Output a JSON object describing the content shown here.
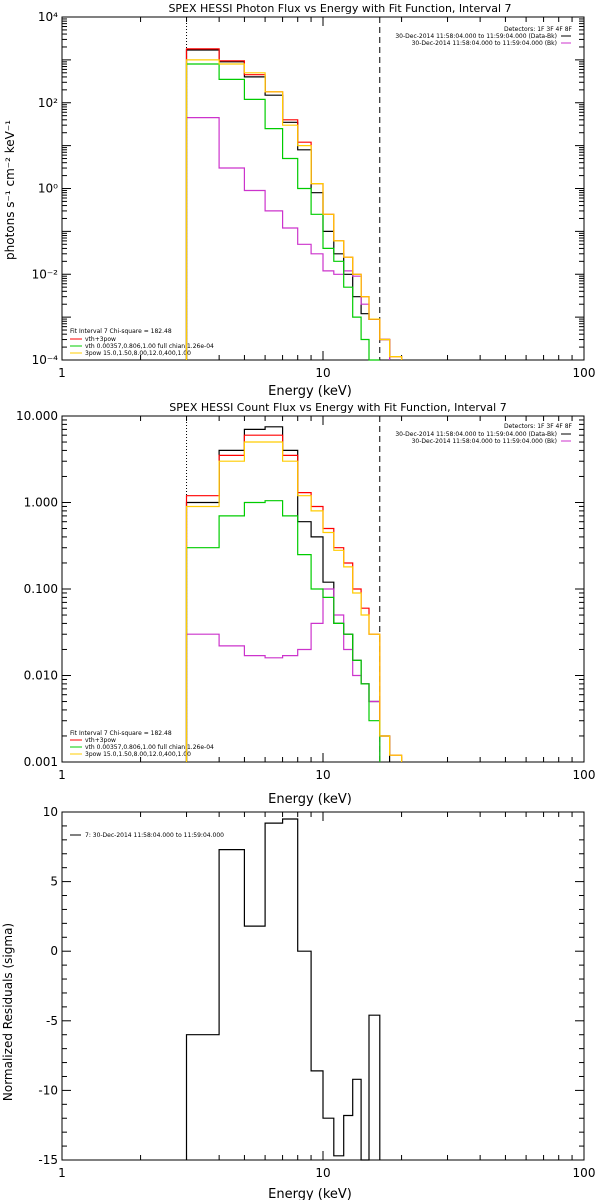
{
  "chart_data": [
    {
      "type": "line",
      "title": "SPEX HESSI Photon Flux vs Energy with Fit Function, Interval 7",
      "xlabel": "Energy (keV)",
      "ylabel": "photons s⁻¹ cm⁻² keV⁻¹",
      "xscale": "log",
      "yscale": "log",
      "xlim": [
        1,
        100
      ],
      "ylim": [
        0.0001,
        10000
      ],
      "x_ticks": [
        "1",
        "10",
        "100"
      ],
      "y_ticks": [
        "10⁴",
        "10²",
        "10⁰",
        "10⁻²",
        "10⁻⁴"
      ],
      "legend_topright": {
        "title": "Detectors: 1F 3F 4F 8F",
        "entries": [
          {
            "label": "30-Dec-2014 11:58:04.000 to 11:59:04.000 (Data-Bk)",
            "color": "#000000"
          },
          {
            "label": "30-Dec-2014 11:58:04.000 to 11:59:04.000 (Bk)",
            "color": "#cc33cc"
          }
        ]
      },
      "legend_bottomleft": {
        "title": "Fit Interval 7   Chi-square = 182.48",
        "entries": [
          {
            "label": "vth+3pow",
            "color": "#ff0000"
          },
          {
            "label": "vth 0.00357,0.806,1.00   full chian 1.26e-04",
            "color": "#00cc00"
          },
          {
            "label": "3pow 15.0,1.50,8.00,12.0,400,1.00",
            "color": "#ffcc00"
          }
        ]
      },
      "vlines": [
        {
          "x": 3.0,
          "style": "dotted"
        },
        {
          "x": 16.5,
          "style": "dashed"
        }
      ],
      "bin_edges": [
        3.0,
        4.0,
        5.0,
        6.0,
        7.0,
        8.0,
        9.0,
        10.0,
        11.0,
        12.0,
        13.0,
        14.0,
        15.0,
        16.5,
        18.0,
        20.0
      ],
      "series": [
        {
          "name": "Data-Bk",
          "color": "#000000",
          "values": [
            1700,
            900,
            400,
            150,
            35,
            8,
            0.8,
            0.1,
            0.03,
            0.01,
            0.003,
            0.0012,
            0.0009,
            0.0003,
            null
          ]
        },
        {
          "name": "Bk",
          "color": "#cc33cc",
          "values": [
            45,
            3,
            0.9,
            0.3,
            0.12,
            0.05,
            0.03,
            0.012,
            0.01,
            0.012,
            0.009,
            0.002,
            0.0009,
            0.0003,
            null
          ]
        },
        {
          "name": "vth+3pow",
          "color": "#ff0000",
          "values": [
            1800,
            950,
            450,
            180,
            40,
            12,
            1.3,
            0.25,
            0.06,
            0.025,
            0.01,
            0.003,
            0.0009,
            0.0003,
            0.00012
          ]
        },
        {
          "name": "vth",
          "color": "#00cc00",
          "values": [
            800,
            350,
            120,
            25,
            5,
            1,
            0.25,
            0.04,
            0.02,
            0.005,
            0.001,
            0.0003,
            0.0001,
            null,
            null
          ]
        },
        {
          "name": "3pow",
          "color": "#ffcc00",
          "values": [
            1000,
            800,
            500,
            180,
            30,
            10,
            1.3,
            0.25,
            0.06,
            0.025,
            0.01,
            0.003,
            0.0009,
            0.0003,
            0.00012
          ]
        }
      ]
    },
    {
      "type": "line",
      "title": "SPEX HESSI Count Flux vs Energy with Fit Function, Interval 7",
      "xlabel": "Energy (keV)",
      "ylabel": "",
      "xscale": "log",
      "yscale": "log",
      "xlim": [
        1,
        100
      ],
      "ylim": [
        0.001,
        10
      ],
      "x_ticks": [
        "1",
        "10",
        "100"
      ],
      "y_ticks": [
        "10.000",
        "1.000",
        "0.100",
        "0.010",
        "0.001"
      ],
      "legend_topright": {
        "title": "Detectors: 1F 3F 4F 8F",
        "entries": [
          {
            "label": "30-Dec-2014 11:58:04.000 to 11:59:04.000 (Data-Bk)",
            "color": "#000000"
          },
          {
            "label": "30-Dec-2014 11:58:04.000 to 11:59:04.000 (Bk)",
            "color": "#cc33cc"
          }
        ]
      },
      "legend_bottomleft": {
        "title": "Fit Interval 7   Chi-square = 182.48",
        "entries": [
          {
            "label": "vth+3pow",
            "color": "#ff0000"
          },
          {
            "label": "vth 0.00357,0.806,1.00   full chian 1.26e-04",
            "color": "#00cc00"
          },
          {
            "label": "3pow 15.0,1.50,8.00,12.0,400,1.00",
            "color": "#ffcc00"
          }
        ]
      },
      "vlines": [
        {
          "x": 3.0,
          "style": "dotted"
        },
        {
          "x": 16.5,
          "style": "dashed"
        }
      ],
      "bin_edges": [
        3.0,
        4.0,
        5.0,
        6.0,
        7.0,
        8.0,
        9.0,
        10.0,
        11.0,
        12.0,
        13.0,
        14.0,
        15.0,
        16.5,
        18.0,
        20.0
      ],
      "series": [
        {
          "name": "Data-Bk",
          "color": "#000000",
          "values": [
            1.0,
            4.0,
            7.0,
            7.5,
            4.0,
            0.6,
            0.4,
            0.12,
            0.04,
            0.03,
            0.015,
            0.008,
            0.005,
            0.002,
            null
          ]
        },
        {
          "name": "Bk",
          "color": "#cc33cc",
          "values": [
            0.03,
            0.022,
            0.017,
            0.016,
            0.017,
            0.02,
            0.04,
            0.1,
            0.05,
            0.02,
            0.01,
            0.008,
            0.005,
            null,
            null
          ]
        },
        {
          "name": "vth+3pow",
          "color": "#ff0000",
          "values": [
            1.2,
            3.5,
            6.0,
            6.0,
            3.5,
            1.3,
            0.9,
            0.5,
            0.3,
            0.2,
            0.1,
            0.06,
            0.03,
            0.002,
            0.0012
          ]
        },
        {
          "name": "vth",
          "color": "#00cc00",
          "values": [
            0.3,
            0.7,
            1.0,
            1.05,
            0.7,
            0.25,
            0.1,
            0.08,
            0.04,
            0.03,
            0.015,
            0.008,
            0.003,
            null,
            null
          ]
        },
        {
          "name": "3pow",
          "color": "#ffcc00",
          "values": [
            0.9,
            3.0,
            5.0,
            5.0,
            3.0,
            1.2,
            0.8,
            0.45,
            0.28,
            0.18,
            0.09,
            0.05,
            0.03,
            0.002,
            0.0012
          ]
        }
      ]
    },
    {
      "type": "line",
      "title": "",
      "xlabel": "Energy (keV)",
      "ylabel": "Normalized Residuals (sigma)",
      "xscale": "log",
      "yscale": "linear",
      "xlim": [
        1,
        100
      ],
      "ylim": [
        -15,
        10
      ],
      "x_ticks": [
        "1",
        "10",
        "100"
      ],
      "y_ticks": [
        "10",
        "5",
        "0",
        "-5",
        "-10",
        "-15"
      ],
      "legend_topleft": {
        "entries": [
          {
            "label": "7: 30-Dec-2014 11:58:04.000 to 11:59:04.000",
            "color": "#000000"
          }
        ]
      },
      "bin_edges": [
        3.0,
        4.0,
        5.0,
        6.0,
        7.0,
        8.0,
        9.0,
        10.0,
        11.0,
        12.0,
        13.0,
        14.0,
        15.0,
        16.5
      ],
      "series": [
        {
          "name": "7: 30-Dec-2014 11:58:04.000 to 11:59:04.000",
          "color": "#000000",
          "values": [
            -6,
            7.3,
            1.8,
            9.2,
            9.5,
            0.0,
            -8.6,
            -12,
            -14.7,
            -11.8,
            -9.2,
            -15,
            -4.6
          ]
        }
      ]
    }
  ]
}
